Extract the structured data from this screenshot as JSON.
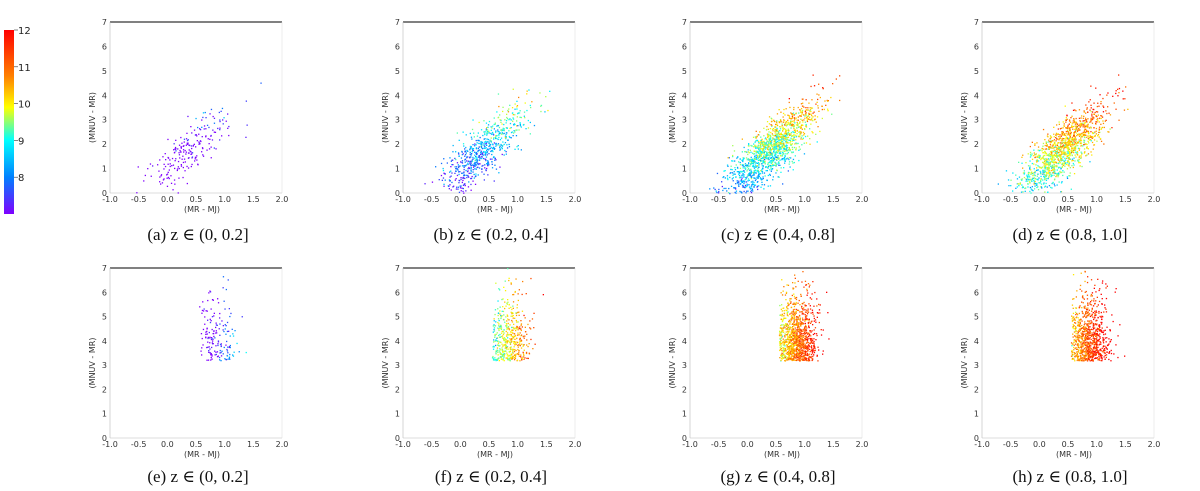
{
  "colorbar": {
    "ticks": [
      "12",
      "11",
      "10",
      "9",
      "8"
    ],
    "tick_values": [
      12,
      11,
      10,
      9,
      8
    ],
    "range": [
      7,
      12
    ],
    "colors": [
      "#ff0000",
      "#ff7f00",
      "#ffff00",
      "#00ffff",
      "#0080ff",
      "#7f00ff"
    ]
  },
  "chart_data": [
    {
      "type": "scatter",
      "id": "a",
      "caption": "(a) z ∈ (0, 0.2]",
      "xlabel": "(MR - MJ)",
      "ylabel": "(MNUV - MR)",
      "xlim": [
        -1.0,
        2.0
      ],
      "ylim": [
        0,
        7
      ],
      "xticks": [
        "-1.0",
        "-0.5",
        "0.0",
        "0.5",
        "1.0",
        "1.5",
        "2.0"
      ],
      "yticks": [
        "0",
        "1",
        "2",
        "3",
        "4",
        "5",
        "6",
        "7"
      ],
      "density": 0.12,
      "color_mean": 7.2
    },
    {
      "type": "scatter",
      "id": "b",
      "caption": "(b) z ∈ (0.2, 0.4]",
      "xlabel": "(MR - MJ)",
      "ylabel": "(MNUV - MR)",
      "xlim": [
        -1.0,
        2.0
      ],
      "ylim": [
        0,
        7
      ],
      "xticks": [
        "-1.0",
        "-0.5",
        "0.0",
        "0.5",
        "1.0",
        "1.5",
        "2.0"
      ],
      "yticks": [
        "0",
        "1",
        "2",
        "3",
        "4",
        "5",
        "6",
        "7"
      ],
      "density": 0.45,
      "color_mean": 8.8
    },
    {
      "type": "scatter",
      "id": "c",
      "caption": "(c) z ∈ (0.4, 0.8]",
      "xlabel": "(MR - MJ)",
      "ylabel": "(MNUV - MR)",
      "xlim": [
        -1.0,
        2.0
      ],
      "ylim": [
        0,
        7
      ],
      "xticks": [
        "-1.0",
        "-0.5",
        "0.0",
        "0.5",
        "1.0",
        "1.5",
        "2.0"
      ],
      "yticks": [
        "0",
        "1",
        "2",
        "3",
        "4",
        "5",
        "6",
        "7"
      ],
      "density": 1.0,
      "color_mean": 9.8
    },
    {
      "type": "scatter",
      "id": "d",
      "caption": "(d) z ∈ (0.8, 1.0]",
      "xlabel": "(MR - MJ)",
      "ylabel": "(MNUV - MR)",
      "xlim": [
        -1.0,
        2.0
      ],
      "ylim": [
        0,
        7
      ],
      "xticks": [
        "-1.0",
        "-0.5",
        "0.0",
        "0.5",
        "1.0",
        "1.5",
        "2.0"
      ],
      "yticks": [
        "0",
        "1",
        "2",
        "3",
        "4",
        "5",
        "6",
        "7"
      ],
      "density": 0.9,
      "color_mean": 10.5
    },
    {
      "type": "scatter",
      "id": "e",
      "caption": "(e) z ∈ (0, 0.2]",
      "xlabel": "(MR - MJ)",
      "ylabel": "(MNUV - MR)",
      "xlim": [
        -1.0,
        2.0
      ],
      "ylim": [
        0,
        7
      ],
      "xticks": [
        "-1.0",
        "-0.5",
        "0.0",
        "0.5",
        "1.0",
        "1.5",
        "2.0"
      ],
      "yticks": [
        "0",
        "1",
        "2",
        "3",
        "4",
        "5",
        "6",
        "7"
      ],
      "density": 0.08,
      "color_mean": 7.2
    },
    {
      "type": "scatter",
      "id": "f",
      "caption": "(f) z ∈ (0.2, 0.4]",
      "xlabel": "(MR - MJ)",
      "ylabel": "(MNUV - MR)",
      "xlim": [
        -1.0,
        2.0
      ],
      "ylim": [
        0,
        7
      ],
      "xticks": [
        "-1.0",
        "-0.5",
        "0.0",
        "0.5",
        "1.0",
        "1.5",
        "2.0"
      ],
      "yticks": [
        "0",
        "1",
        "2",
        "3",
        "4",
        "5",
        "6",
        "7"
      ],
      "density": 0.3,
      "color_mean": 10.0
    },
    {
      "type": "scatter",
      "id": "g",
      "caption": "(g) z ∈ (0.4, 0.8]",
      "xlabel": "(MR - MJ)",
      "ylabel": "(MNUV - MR)",
      "xlim": [
        -1.0,
        2.0
      ],
      "ylim": [
        0,
        7
      ],
      "xticks": [
        "-1.0",
        "-0.5",
        "0.0",
        "0.5",
        "1.0",
        "1.5",
        "2.0"
      ],
      "yticks": [
        "0",
        "1",
        "2",
        "3",
        "4",
        "5",
        "6",
        "7"
      ],
      "density": 0.75,
      "color_mean": 10.8
    },
    {
      "type": "scatter",
      "id": "h",
      "caption": "(h) z ∈ (0.8, 1.0]",
      "xlabel": "(MR - MJ)",
      "ylabel": "(MNUV - MR)",
      "xlim": [
        -1.0,
        2.0
      ],
      "ylim": [
        0,
        7
      ],
      "xticks": [
        "-1.0",
        "-0.5",
        "0.0",
        "0.5",
        "1.0",
        "1.5",
        "2.0"
      ],
      "yticks": [
        "0",
        "1",
        "2",
        "3",
        "4",
        "5",
        "6",
        "7"
      ],
      "density": 0.6,
      "color_mean": 11.2
    }
  ]
}
